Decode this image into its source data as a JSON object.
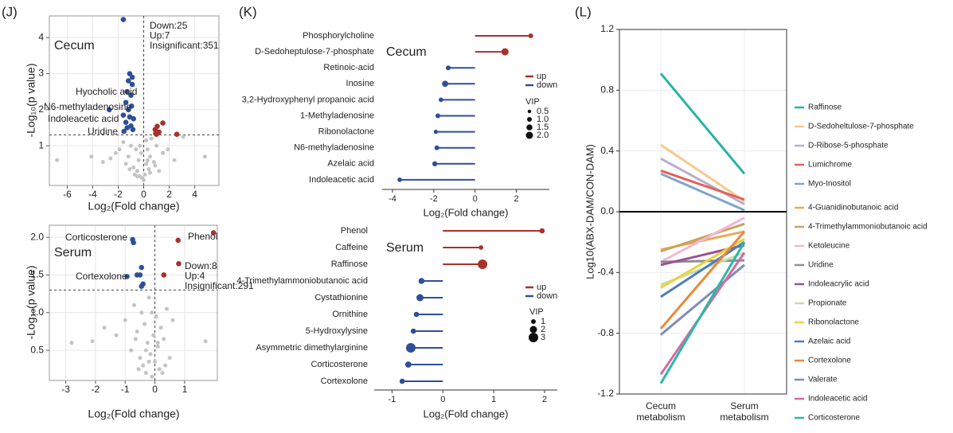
{
  "chart_data": [
    {
      "type": "scatter",
      "panel": "(J)",
      "title": "Cecum",
      "xlabel": "Log₂(Fold change)",
      "ylabel": "-Log₁₀(p value)",
      "xlim": [
        -7.4,
        5.9
      ],
      "ylim": [
        -0.1,
        4.6
      ],
      "xticks": [
        -6,
        -4,
        -2,
        0,
        2,
        4
      ],
      "yticks": [
        1,
        2,
        3,
        4
      ],
      "grid": true,
      "threshold_x": 0,
      "threshold_y": 1.3,
      "series": [
        {
          "name": "Down:25",
          "color": "#2e4f99",
          "x": [
            -1.6,
            -1.1,
            -0.9,
            -1.2,
            -0.9,
            -1.3,
            -1.0,
            -1.4,
            -0.95,
            -1.2,
            -1.6,
            -1.1,
            -0.8,
            -1.4,
            -1.0,
            -1.3,
            -0.85,
            -1.55,
            -2.7
          ],
          "values": [
            4.5,
            3.0,
            2.9,
            2.8,
            2.7,
            2.5,
            2.4,
            2.2,
            2.1,
            2.0,
            1.85,
            1.8,
            1.75,
            1.65,
            1.55,
            1.5,
            1.45,
            1.4,
            2.0
          ]
        },
        {
          "name": "Up:7",
          "color": "#a8322b",
          "x": [
            1.06,
            1.5,
            0.94,
            2.6,
            0.9,
            1.2,
            1.0
          ],
          "values": [
            1.54,
            1.63,
            1.34,
            1.32,
            1.45,
            1.38,
            1.32
          ]
        },
        {
          "name": "Insignificant:351",
          "color": "#c4c4c4",
          "x": [
            -6.8,
            -4.1,
            4.8,
            -3.2,
            -2.6,
            -2.2,
            -1.9,
            -1.6,
            -1.4,
            -1.2,
            -1.0,
            -0.8,
            -0.6,
            -0.5,
            -0.4,
            -0.3,
            -0.2,
            -0.1,
            0,
            0.1,
            0.2,
            0.3,
            0.4,
            0.5,
            0.6,
            0.8,
            1.0,
            1.2,
            1.5,
            1.9,
            2.4,
            3.1,
            -0.7,
            -0.3,
            0.2,
            0.5,
            -1.1,
            0.9,
            -0.5,
            0.3
          ],
          "values": [
            0.6,
            0.7,
            0.7,
            0.55,
            0.65,
            0.8,
            0.9,
            1.1,
            0.5,
            0.7,
            1.0,
            0.4,
            0.9,
            0.3,
            0.6,
            0.15,
            0.8,
            0.1,
            0.05,
            0.2,
            0.5,
            0.9,
            0.35,
            0.7,
            1.2,
            0.55,
            1.0,
            0.3,
            0.8,
            0.9,
            0.6,
            1.25,
            0.2,
            1.0,
            1.15,
            0.25,
            0.35,
            0.45,
            0.15,
            0.6
          ]
        }
      ],
      "annotations": [
        {
          "text": "Hyocholic acid",
          "color": "#2e4f99"
        },
        {
          "text": "N6-methyladenosine",
          "color": "#2e4f99"
        },
        {
          "text": "Indoleacetic acid",
          "color": "#2e4f99"
        },
        {
          "text": "Uridine",
          "color": "#2e4f99"
        }
      ]
    },
    {
      "type": "scatter",
      "title": "Serum",
      "xlabel": "Log₂(Fold change)",
      "ylabel": "-Log₁₀(p value)",
      "xlim": [
        -3.55,
        2.1
      ],
      "ylim": [
        0.1,
        2.16
      ],
      "xticks": [
        -3,
        -2,
        -1,
        0,
        1
      ],
      "yticks": [
        0.5,
        {
          "value": 1,
          "label": "1.0"
        },
        1.5,
        {
          "value": 2,
          "label": "2.0"
        }
      ],
      "grid": true,
      "threshold_x": 0,
      "threshold_y": 1.3,
      "series": [
        {
          "name": "Down:8",
          "color": "#2e4f99",
          "x": [
            -0.75,
            -0.72,
            -0.45,
            -0.5,
            -0.4,
            -0.6,
            -0.94,
            -0.45
          ],
          "values": [
            1.97,
            1.93,
            1.6,
            1.5,
            1.38,
            1.5,
            1.48,
            1.35
          ]
        },
        {
          "name": "Up:4",
          "color": "#a8322b",
          "x": [
            1.97,
            0.78,
            0.8,
            0.3
          ],
          "values": [
            2.06,
            1.96,
            1.65,
            1.5
          ]
        },
        {
          "name": "Insignificant:291",
          "color": "#c4c4c4",
          "x": [
            -2.8,
            -2.1,
            1.7,
            -1.7,
            -1.3,
            -1.0,
            -0.8,
            -0.7,
            -0.6,
            -0.5,
            -0.45,
            -0.4,
            -0.35,
            -0.3,
            -0.25,
            -0.2,
            -0.15,
            -0.1,
            -0.05,
            0,
            0.05,
            0.1,
            0.15,
            0.2,
            0.3,
            0.4,
            0.5,
            0.6,
            -0.55,
            -0.3,
            -0.2,
            -0.1,
            0.1,
            0.25,
            -0.65,
            0.35
          ],
          "values": [
            0.6,
            0.62,
            0.62,
            0.8,
            0.7,
            0.9,
            0.5,
            1.1,
            0.75,
            0.4,
            1.0,
            0.3,
            0.85,
            0.2,
            0.6,
            1.2,
            0.45,
            0.15,
            0.7,
            0.35,
            0.95,
            0.55,
            0.25,
            0.8,
            0.65,
            1.05,
            0.4,
            0.9,
            0.25,
            0.5,
            0.35,
            1.0,
            0.6,
            0.2,
            0.65,
            0.3
          ]
        }
      ],
      "annotations": [
        {
          "text": "Corticosterone",
          "color": "#2e4f99"
        },
        {
          "text": "Phenol",
          "color": "#a8322b"
        },
        {
          "text": "Cortexolone",
          "color": "#2e4f99"
        }
      ]
    },
    {
      "type": "lollipop",
      "panel": "(K)",
      "title": "Cecum",
      "xlabel": "Log₂(Fold change)",
      "categories": [
        "Phosphorylcholine",
        "D-Sedoheptulose-7-phosphate",
        "Retinoic-acid",
        "Inosine",
        "3,2-Hydroxyphenyl propanoic acid",
        "1-Methyladenosine",
        "Ribonolactone",
        "N6-methyladenosine",
        "Azelaic acid",
        "Indoleacetic acid"
      ],
      "values": [
        2.7,
        1.45,
        -1.3,
        -1.45,
        -1.65,
        -1.8,
        -1.9,
        -1.85,
        -1.95,
        -3.65
      ],
      "vip": [
        1.0,
        2.0,
        1.0,
        1.6,
        0.9,
        1.0,
        0.8,
        1.0,
        1.1,
        0.9
      ],
      "xlim": [
        -4.5,
        3.6
      ],
      "xticks": [
        -4,
        -2,
        0,
        2
      ],
      "legend": [
        {
          "name": "up",
          "color": "#a8322b"
        },
        {
          "name": "down",
          "color": "#2e4f99"
        }
      ],
      "size_legend": {
        "title": "VIP",
        "values": [
          0.5,
          {
            "value": 1,
            "label": "1.0"
          },
          1.5,
          {
            "value": 2,
            "label": "2.0"
          }
        ]
      }
    },
    {
      "type": "lollipop",
      "title": "Serum",
      "xlabel": "Log₂(Fold change)",
      "categories": [
        "Phenol",
        "Caffeine",
        "Raffinose",
        "4-Trimethylammoniobutanoic acid",
        "Cystathionine",
        "Ornithine",
        "5-Hydroxylysine",
        "Asymmetric dimethylarginine",
        "Corticosterone",
        "Cortexolone"
      ],
      "values": [
        1.95,
        0.75,
        0.78,
        -0.42,
        -0.45,
        -0.52,
        -0.58,
        -0.63,
        -0.68,
        -0.8
      ],
      "vip": [
        1.2,
        0.9,
        3.0,
        1.5,
        2.0,
        1.2,
        1.2,
        3.0,
        1.6,
        1.2
      ],
      "xlim": [
        -1.35,
        2.25
      ],
      "xticks": [
        -1,
        0,
        1,
        2
      ],
      "legend": [
        {
          "name": "up",
          "color": "#a8322b"
        },
        {
          "name": "down",
          "color": "#2e4f99"
        }
      ],
      "size_legend": {
        "title": "VIP",
        "values": [
          1,
          2,
          3
        ]
      }
    },
    {
      "type": "line",
      "panel": "(L)",
      "ylabel": "Log10(ABX-DAM/CON-DAM)",
      "categories": [
        "Cecum\nmetabolism",
        "Serum\nmetabolism"
      ],
      "ylim": [
        -1.2,
        1.2
      ],
      "yticks": [
        1.2,
        0.8,
        0.4,
        {
          "value": 0,
          "label": "0.0"
        },
        -0.4,
        -0.8,
        -1.2
      ],
      "grid": true,
      "series": [
        {
          "name": "Raffinose",
          "color": "#2ab3a6",
          "values": [
            0.91,
            0.25
          ]
        },
        {
          "name": "D-Sedoheltulose-7-phosphate",
          "color": "#f7c98e",
          "values": [
            0.44,
            0.07
          ]
        },
        {
          "name": "D-Ribose-5-phosphate",
          "color": "#b9aec9",
          "values": [
            0.35,
            0.05
          ]
        },
        {
          "name": "Lumichrome",
          "color": "#e0625a",
          "values": [
            0.27,
            0.08
          ]
        },
        {
          "name": "Myo-Inositol",
          "color": "#7fa5c9",
          "values": [
            0.25,
            0.01
          ]
        },
        {
          "name": "4-Guanidinobutanoic acid",
          "color": "#e8a95c",
          "values": [
            -0.25,
            -0.13
          ]
        },
        {
          "name": "4-Trimethylammoniobutanoic acid",
          "color": "#c9a35a",
          "values": [
            -0.26,
            -0.08
          ]
        },
        {
          "name": "Ketoleucine",
          "color": "#f2b8d4",
          "values": [
            -0.33,
            -0.04
          ]
        },
        {
          "name": "Uridine",
          "color": "#8e8e8e",
          "values": [
            -0.33,
            -0.32
          ]
        },
        {
          "name": "Indoleacrylic acid",
          "color": "#9b4f96",
          "values": [
            -0.35,
            -0.22
          ]
        },
        {
          "name": "Propionate",
          "color": "#c5dfa8",
          "values": [
            -0.48,
            -0.27
          ]
        },
        {
          "name": "Ribonolactone",
          "color": "#e9d43a",
          "values": [
            -0.5,
            -0.18
          ]
        },
        {
          "name": "Azelaic acid",
          "color": "#4d7bbf",
          "values": [
            -0.56,
            -0.2
          ]
        },
        {
          "name": "Cortexolone",
          "color": "#e8893c",
          "values": [
            -0.77,
            -0.13
          ]
        },
        {
          "name": "Valerate",
          "color": "#7d8fb3",
          "values": [
            -0.81,
            -0.35
          ]
        },
        {
          "name": "Indoleacetic acid",
          "color": "#d46aa3",
          "values": [
            -1.07,
            -0.27
          ]
        },
        {
          "name": "Corticosterone",
          "color": "#2ab8a8",
          "values": [
            -1.13,
            -0.2
          ]
        }
      ]
    }
  ]
}
